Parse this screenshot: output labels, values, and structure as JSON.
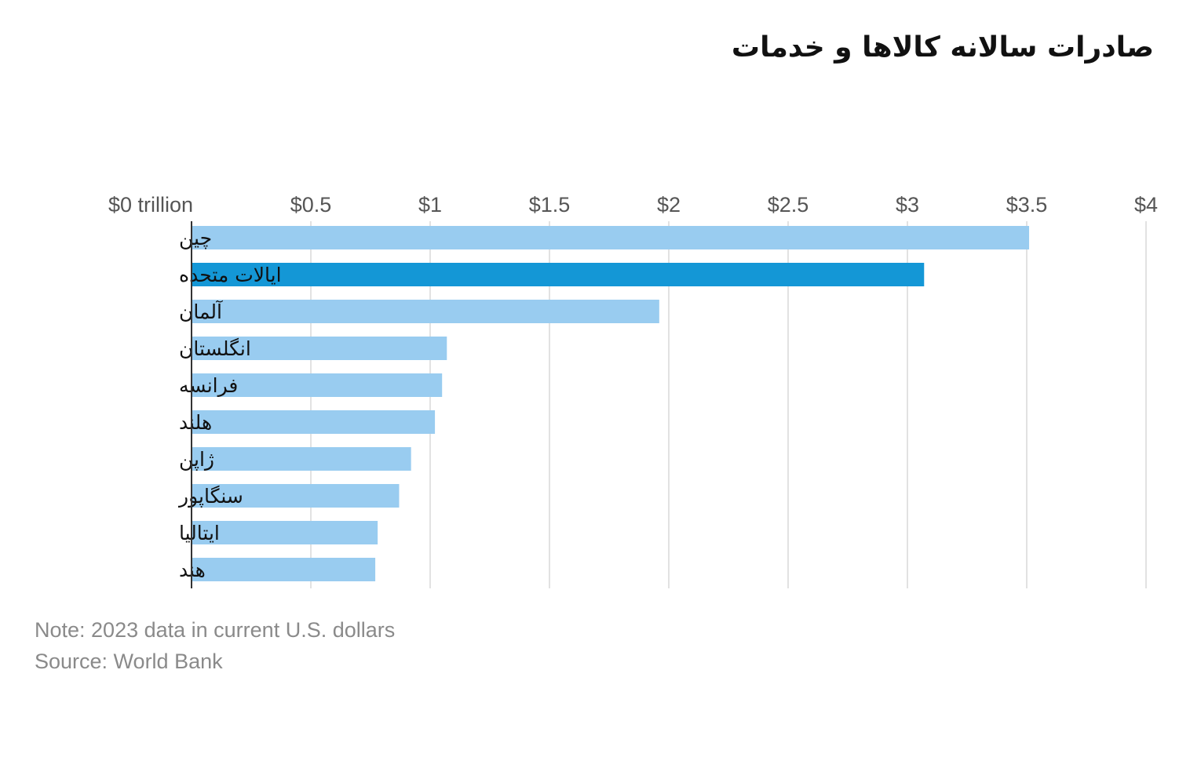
{
  "chart_data": {
    "type": "bar",
    "orientation": "horizontal",
    "title": "صادرات سالانه کالاها و خدمات",
    "categories": [
      "چین",
      "ایالات متحده",
      "آلمان",
      "انگلستان",
      "فرانسه",
      "هلند",
      "ژاپن",
      "سنگاپور",
      "ایتالیا",
      "هند"
    ],
    "values": [
      3.51,
      3.07,
      1.96,
      1.07,
      1.05,
      1.02,
      0.92,
      0.87,
      0.78,
      0.77
    ],
    "highlight_index": 1,
    "xlim": [
      0,
      4
    ],
    "xticks": [
      0,
      0.5,
      1,
      1.5,
      2,
      2.5,
      3,
      3.5,
      4
    ],
    "xtick_labels": [
      "$0 trillion",
      "$0.5",
      "$1",
      "$1.5",
      "$2",
      "$2.5",
      "$3",
      "$3.5",
      "$4"
    ],
    "xaxis_position": "top",
    "grid": true,
    "colors": {
      "bar": "#99ccf0",
      "highlight": "#1497d6"
    }
  },
  "notes": {
    "note": "Note: 2023 data in current U.S. dollars",
    "source": "Source: World Bank"
  }
}
